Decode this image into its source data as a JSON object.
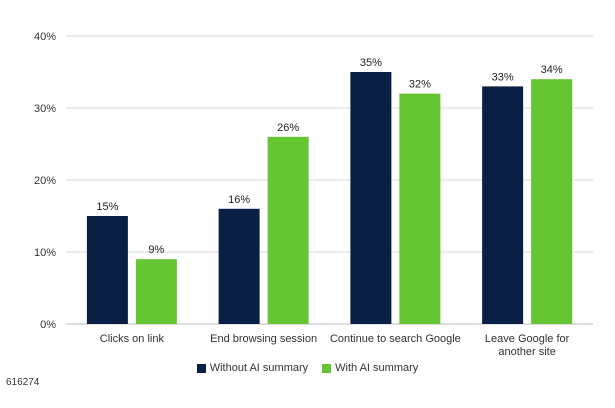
{
  "chart_data": {
    "type": "bar",
    "title": "",
    "xlabel": "",
    "ylabel": "",
    "categories": [
      [
        "Clicks on link"
      ],
      [
        "End browsing session"
      ],
      [
        "Continue to search Google"
      ],
      [
        "Leave Google for",
        "another site"
      ]
    ],
    "series": [
      {
        "name": "Without AI summary",
        "color": "#0a1f44",
        "values": [
          15,
          16,
          35,
          33
        ]
      },
      {
        "name": "With AI summary",
        "color": "#66c533",
        "values": [
          9,
          26,
          32,
          34
        ]
      }
    ],
    "value_suffix": "%",
    "ylim": [
      0,
      40
    ],
    "yticks": [
      0,
      10,
      20,
      30,
      40
    ],
    "ytick_labels": [
      "0%",
      "10%",
      "20%",
      "30%",
      "40%"
    ],
    "grid": true,
    "legend_position": "bottom-center"
  },
  "footer": {
    "id_text": "616274"
  }
}
